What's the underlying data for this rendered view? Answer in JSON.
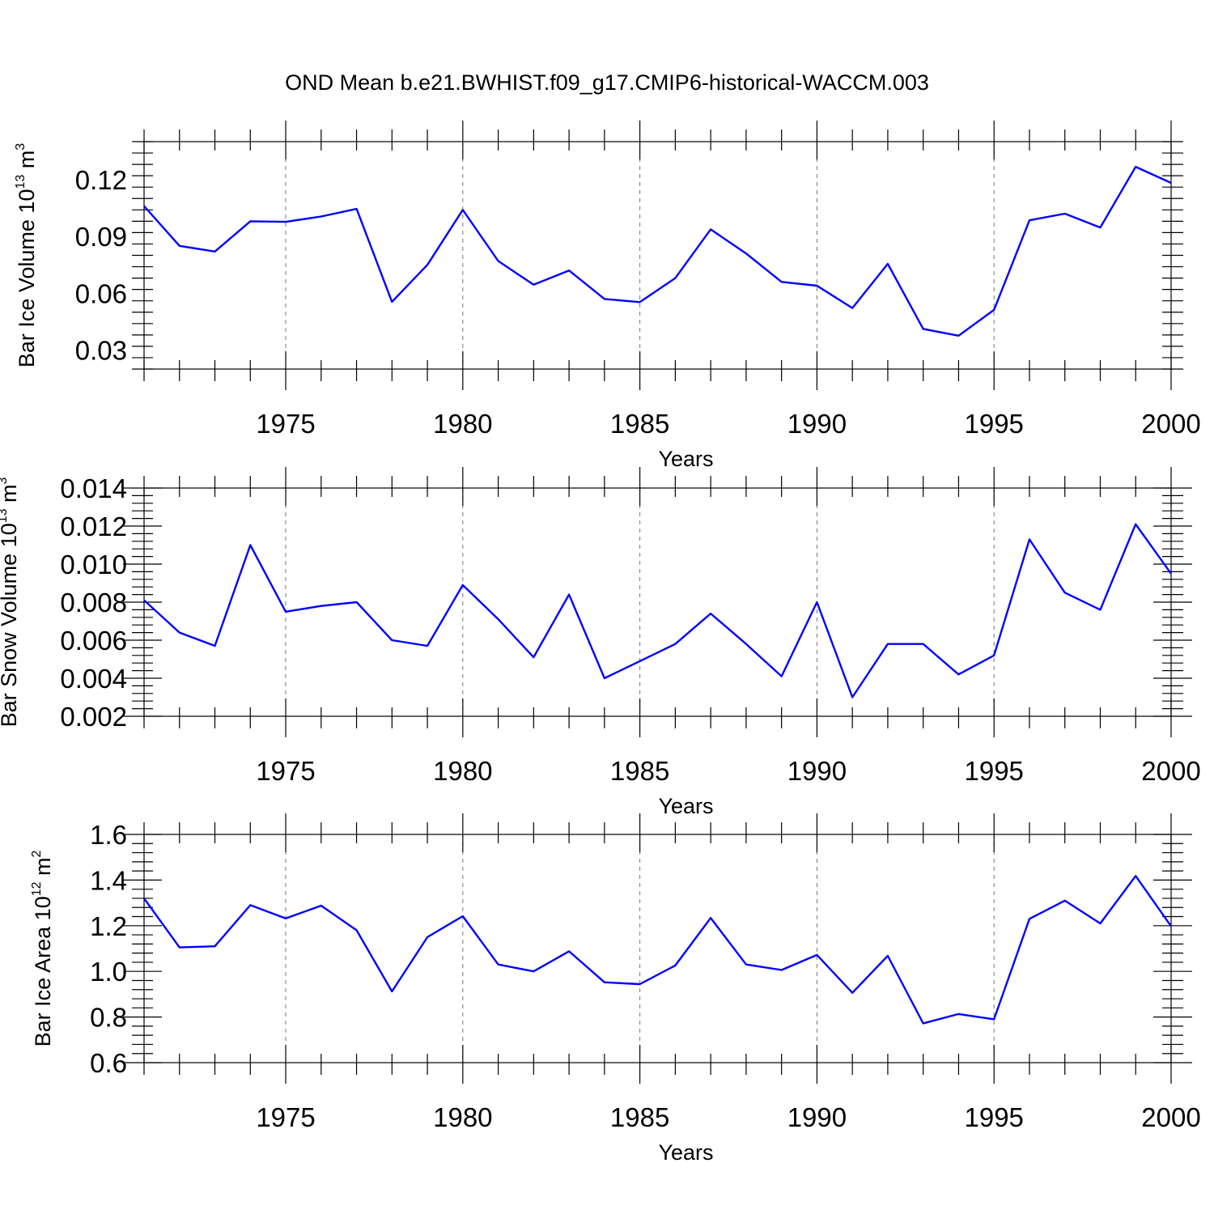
{
  "title": "OND Mean b.e21.BWHIST.f09_g17.CMIP6-historical-WACCM.003",
  "colors": {
    "line": "#0000ff",
    "grid": "#777777"
  },
  "chart_data": [
    {
      "type": "line",
      "ylabel_main": "Bar Ice Volume 10",
      "ylabel_exp": "13",
      "ylabel_unit": "m",
      "ylabel_unit_exp": "3",
      "xlabel": "Years",
      "xlim": [
        1971,
        2000
      ],
      "ylim": [
        0.02,
        0.14
      ],
      "yticks": [
        0.03,
        0.06,
        0.09,
        0.12
      ],
      "ytick_labels": [
        "0.03",
        "0.06",
        "0.09",
        "0.12"
      ],
      "xticks": [
        1975,
        1980,
        1985,
        1990,
        1995,
        2000
      ],
      "xtick_labels": [
        "1975",
        "1980",
        "1985",
        "1990",
        "1995",
        "2000"
      ],
      "series": [
        {
          "name": "Bar Ice Volume",
          "x": [
            1971,
            1972,
            1973,
            1974,
            1975,
            1976,
            1977,
            1978,
            1979,
            1980,
            1981,
            1982,
            1983,
            1984,
            1985,
            1986,
            1987,
            1988,
            1989,
            1990,
            1991,
            1992,
            1993,
            1994,
            1995,
            1996,
            1997,
            1998,
            1999,
            2000
          ],
          "values": [
            0.106,
            0.085,
            0.082,
            0.098,
            0.0977,
            0.1005,
            0.1045,
            0.0555,
            0.075,
            0.104,
            0.077,
            0.0645,
            0.072,
            0.057,
            0.0553,
            0.068,
            0.0937,
            0.081,
            0.066,
            0.064,
            0.0522,
            0.0755,
            0.0412,
            0.0376,
            0.0512,
            0.0985,
            0.102,
            0.0947,
            0.1267,
            0.1182
          ]
        }
      ]
    },
    {
      "type": "line",
      "ylabel_main": "Bar Snow Volume 10",
      "ylabel_exp": "13",
      "ylabel_unit": "m",
      "ylabel_unit_exp": "3",
      "xlabel": "Years",
      "xlim": [
        1971,
        2000
      ],
      "ylim": [
        0.002,
        0.014
      ],
      "yticks": [
        0.002,
        0.004,
        0.006,
        0.008,
        0.01,
        0.012,
        0.014
      ],
      "ytick_labels": [
        "0.002",
        "0.004",
        "0.006",
        "0.008",
        "0.010",
        "0.012",
        "0.014"
      ],
      "xticks": [
        1975,
        1980,
        1985,
        1990,
        1995,
        2000
      ],
      "xtick_labels": [
        "1975",
        "1980",
        "1985",
        "1990",
        "1995",
        "2000"
      ],
      "series": [
        {
          "name": "Bar Snow Volume",
          "x": [
            1971,
            1972,
            1973,
            1974,
            1975,
            1976,
            1977,
            1978,
            1979,
            1980,
            1981,
            1982,
            1983,
            1984,
            1985,
            1986,
            1987,
            1988,
            1989,
            1990,
            1991,
            1992,
            1993,
            1994,
            1995,
            1996,
            1997,
            1998,
            1999,
            2000
          ],
          "values": [
            0.0081,
            0.0064,
            0.0057,
            0.011,
            0.0075,
            0.0078,
            0.008,
            0.006,
            0.0057,
            0.0089,
            0.0071,
            0.0051,
            0.0084,
            0.004,
            0.0049,
            0.0058,
            0.0074,
            0.0058,
            0.0041,
            0.008,
            0.003,
            0.0058,
            0.0058,
            0.0042,
            0.0052,
            0.0113,
            0.0085,
            0.0076,
            0.0121,
            0.0095
          ]
        }
      ]
    },
    {
      "type": "line",
      "ylabel_main": "Bar Ice Area 10",
      "ylabel_exp": "12",
      "ylabel_unit": "m",
      "ylabel_unit_exp": "2",
      "xlabel": "Years",
      "xlim": [
        1971,
        2000
      ],
      "ylim": [
        0.6,
        1.6
      ],
      "yticks": [
        0.6,
        0.8,
        1.0,
        1.2,
        1.4,
        1.6
      ],
      "ytick_labels": [
        "0.6",
        "0.8",
        "1.0",
        "1.2",
        "1.4",
        "1.6"
      ],
      "xticks": [
        1975,
        1980,
        1985,
        1990,
        1995,
        2000
      ],
      "xtick_labels": [
        "1975",
        "1980",
        "1985",
        "1990",
        "1995",
        "2000"
      ],
      "series": [
        {
          "name": "Bar Ice Area",
          "x": [
            1971,
            1972,
            1973,
            1974,
            1975,
            1976,
            1977,
            1978,
            1979,
            1980,
            1981,
            1982,
            1983,
            1984,
            1985,
            1986,
            1987,
            1988,
            1989,
            1990,
            1991,
            1992,
            1993,
            1994,
            1995,
            1996,
            1997,
            1998,
            1999,
            2000
          ],
          "values": [
            1.32,
            1.105,
            1.11,
            1.29,
            1.232,
            1.288,
            1.18,
            0.912,
            1.15,
            1.242,
            1.03,
            1.0,
            1.088,
            0.952,
            0.944,
            1.026,
            1.234,
            1.03,
            1.006,
            1.072,
            0.906,
            1.068,
            0.772,
            0.813,
            0.79,
            1.23,
            1.31,
            1.21,
            1.418,
            1.198
          ]
        }
      ]
    }
  ]
}
